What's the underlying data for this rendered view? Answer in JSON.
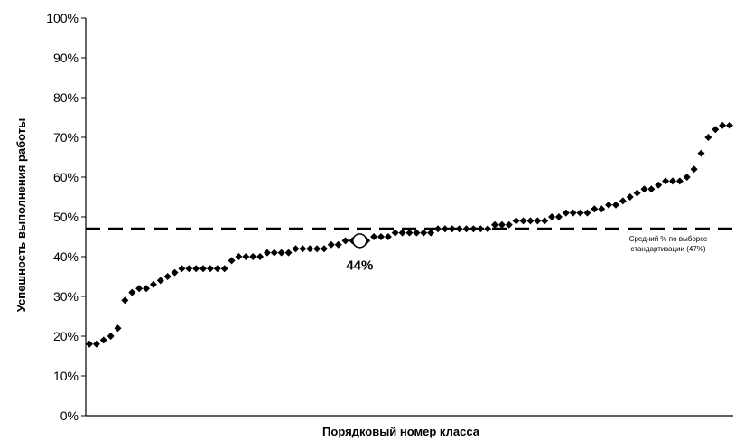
{
  "chart_data": {
    "type": "scatter",
    "xlabel": "Порядковый номер класса",
    "ylabel": "Успешность выполнения работы",
    "ylim": [
      0,
      100
    ],
    "y_ticks": [
      "0%",
      "10%",
      "20%",
      "30%",
      "40%",
      "50%",
      "60%",
      "70%",
      "80%",
      "90%",
      "100%"
    ],
    "grid": false,
    "marker_color": "#000000",
    "series": [
      {
        "values": [
          18,
          18,
          19,
          20,
          22,
          29,
          31,
          32,
          32,
          33,
          34,
          35,
          36,
          37,
          37,
          37,
          37,
          37,
          37,
          37,
          39,
          40,
          40,
          40,
          40,
          41,
          41,
          41,
          41,
          42,
          42,
          42,
          42,
          42,
          43,
          43,
          44,
          44,
          44,
          44,
          45,
          45,
          45,
          46,
          46,
          46,
          46,
          46,
          46,
          47,
          47,
          47,
          47,
          47,
          47,
          47,
          47,
          48,
          48,
          48,
          49,
          49,
          49,
          49,
          49,
          50,
          50,
          51,
          51,
          51,
          51,
          52,
          52,
          53,
          53,
          54,
          55,
          56,
          57,
          57,
          58,
          59,
          59,
          59,
          60,
          62,
          66,
          70,
          72,
          73,
          73
        ]
      }
    ],
    "highlight": {
      "index": 38,
      "value": 44,
      "label": "44%"
    },
    "reference_line": {
      "value": 47,
      "style": "dashed",
      "label_lines": [
        "Средний % по выборке",
        "стандартизации (47%)"
      ]
    }
  }
}
